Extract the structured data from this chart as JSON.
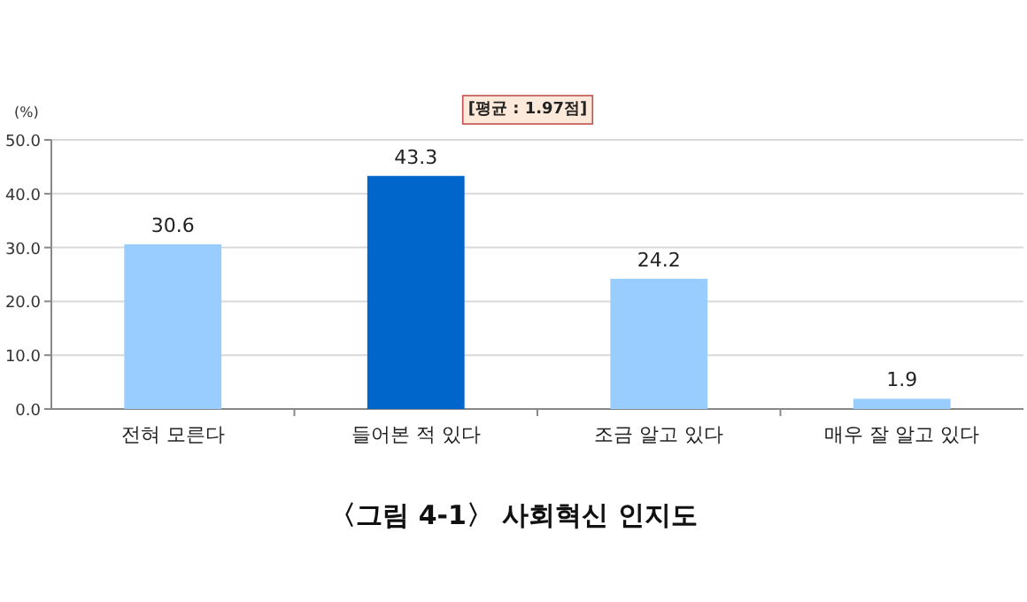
{
  "chart_data": {
    "type": "bar",
    "title": "〈그림 4-1〉 사회혁신 인지도",
    "ylabel": "(%)",
    "annotations": [
      "[평균 : 1.97점]"
    ],
    "categories": [
      "전혀 모른다",
      "들어본 적 있다",
      "조금 알고 있다",
      "매우 잘 알고 있다"
    ],
    "values": [
      30.6,
      43.3,
      24.2,
      1.9
    ],
    "colors": [
      "#99ccff",
      "#0066cc",
      "#99ccff",
      "#99ccff"
    ],
    "ylim": [
      0,
      50
    ],
    "yticks": [
      {
        "value": 0,
        "label": "0.0"
      },
      {
        "value": 10,
        "label": "10.0"
      },
      {
        "value": 20,
        "label": "20.0"
      },
      {
        "value": 30,
        "label": "30.0"
      },
      {
        "value": 40,
        "label": "40.0"
      },
      {
        "value": 50,
        "label": "50.0"
      }
    ],
    "grid": "y",
    "data_labels": true
  }
}
